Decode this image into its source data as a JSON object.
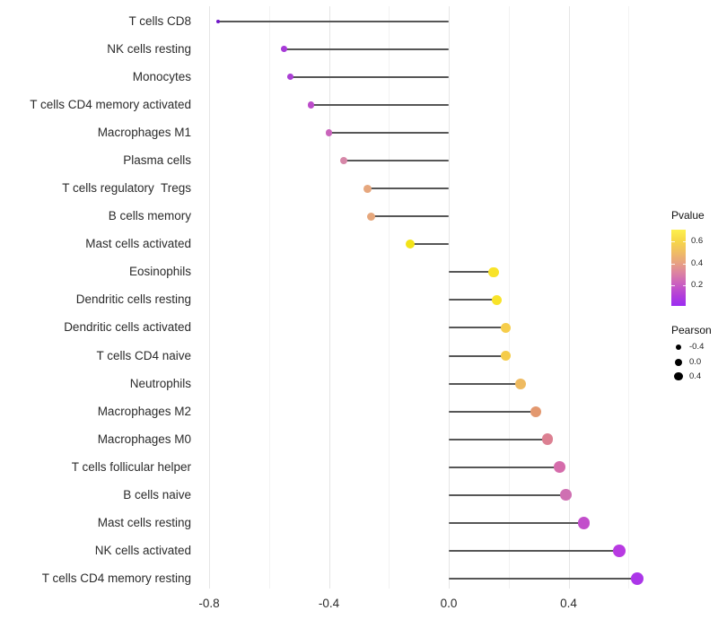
{
  "chart_data": {
    "type": "scatter",
    "variant": "horizontal-lollipop",
    "title": "",
    "xlabel": "",
    "ylabel": "",
    "xlim": [
      -0.84,
      0.7
    ],
    "grid": {
      "major_x": [
        -0.8,
        -0.4,
        0.0,
        0.4
      ],
      "minor_x": [
        -0.6,
        -0.2,
        0.2,
        0.6
      ],
      "horizontal": "off"
    },
    "x_axis": {
      "tick_values": [
        -0.8,
        -0.4,
        0.0,
        0.4
      ],
      "tick_labels": [
        "-0.8",
        "-0.4",
        "0.0",
        "0.4"
      ]
    },
    "color_encodes": "Pvalue",
    "size_encodes": "Pearson",
    "points": [
      {
        "label": "T cells CD8",
        "pearson": -0.77,
        "color": "#6f15c8"
      },
      {
        "label": "NK cells resting",
        "pearson": -0.55,
        "color": "#a73ad8"
      },
      {
        "label": "Monocytes",
        "pearson": -0.53,
        "color": "#aa3fd4"
      },
      {
        "label": "T cells CD4 memory activated",
        "pearson": -0.46,
        "color": "#bc4cca"
      },
      {
        "label": "Macrophages M1",
        "pearson": -0.4,
        "color": "#c964bb"
      },
      {
        "label": "Plasma cells",
        "pearson": -0.35,
        "color": "#d687a8"
      },
      {
        "label": "T cells regulatory  Tregs",
        "pearson": -0.27,
        "color": "#e6a77e"
      },
      {
        "label": "B cells memory",
        "pearson": -0.26,
        "color": "#e6a77c"
      },
      {
        "label": "Mast cells activated",
        "pearson": -0.13,
        "color": "#f2e318"
      },
      {
        "label": "Eosinophils",
        "pearson": 0.15,
        "color": "#f8e329"
      },
      {
        "label": "Dendritic cells resting",
        "pearson": 0.16,
        "color": "#f8e329"
      },
      {
        "label": "Dendritic cells activated",
        "pearson": 0.19,
        "color": "#f6cd4a"
      },
      {
        "label": "T cells CD4 naive",
        "pearson": 0.19,
        "color": "#f5cc49"
      },
      {
        "label": "Neutrophils",
        "pearson": 0.24,
        "color": "#eeba60"
      },
      {
        "label": "Macrophages M2",
        "pearson": 0.29,
        "color": "#e3986f"
      },
      {
        "label": "Macrophages M0",
        "pearson": 0.33,
        "color": "#dc8092"
      },
      {
        "label": "T cells follicular helper",
        "pearson": 0.37,
        "color": "#d56cab"
      },
      {
        "label": "B cells naive",
        "pearson": 0.39,
        "color": "#cf70b2"
      },
      {
        "label": "Mast cells resting",
        "pearson": 0.45,
        "color": "#c24ecb"
      },
      {
        "label": "NK cells activated",
        "pearson": 0.57,
        "color": "#b83ae2"
      },
      {
        "label": "T cells CD4 memory resting",
        "pearson": 0.63,
        "color": "#ab36e8"
      }
    ]
  },
  "legend": {
    "pvalue": {
      "title": "Pvalue",
      "tick_labels": [
        "0.6",
        "0.4",
        "0.2"
      ],
      "gradient_top_to_bottom": [
        "#fdf04e",
        "#f7d847",
        "#f0bf62",
        "#e8a380",
        "#dc82a2",
        "#ca5fc0",
        "#b33fd9",
        "#9b2df2"
      ]
    },
    "pearson": {
      "title": "Pearson",
      "items": [
        {
          "label": "-0.4",
          "radius": 3.3
        },
        {
          "label": "0.0",
          "radius": 4.0
        },
        {
          "label": "0.4",
          "radius": 4.7
        }
      ]
    }
  },
  "colors": {
    "stem": "#565656",
    "grid_major": "#e5e5e5",
    "grid_minor": "#f2f2f2",
    "axis_text": "#2b2b2b"
  }
}
